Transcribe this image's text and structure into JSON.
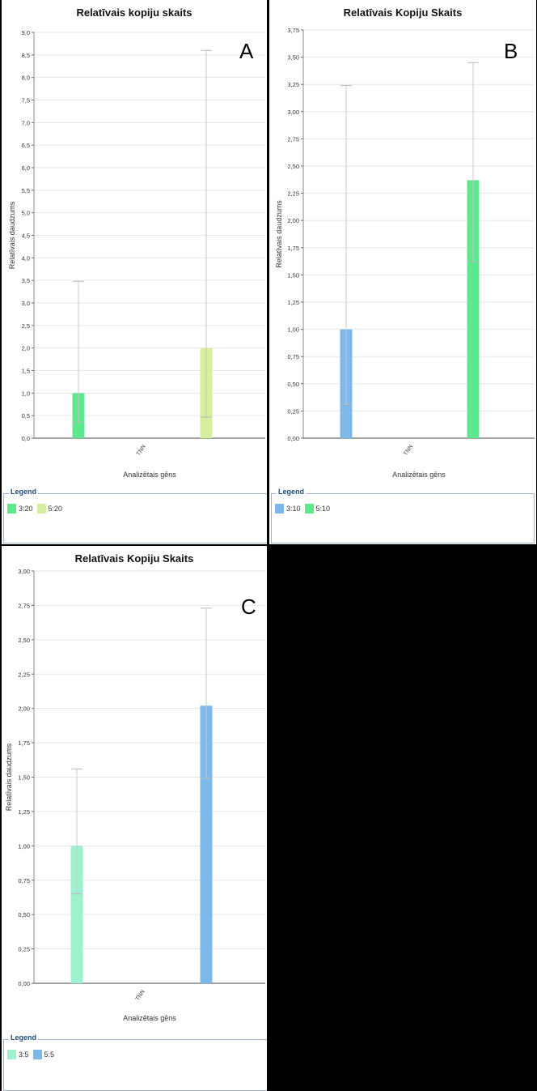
{
  "chart_data": [
    {
      "id": "A",
      "type": "bar",
      "title": "Relatīvais kopiju skaits",
      "panel_label": "A",
      "xlabel": "Analizētais gēns",
      "ylabel": "Relatīvais daudzums",
      "categories": [
        "TNN"
      ],
      "ylim": [
        0,
        9.0
      ],
      "ytick_step": 0.5,
      "yticks": [
        "0,0",
        "0,5",
        "1,0",
        "1,5",
        "2,0",
        "2,5",
        "3,0",
        "3,5",
        "4,0",
        "4,5",
        "5,0",
        "5,5",
        "6,0",
        "6,5",
        "7,0",
        "7,5",
        "8,0",
        "8,5",
        "9,0"
      ],
      "grid": true,
      "legend_title": "Legend",
      "legend_position": "bottom",
      "series": [
        {
          "name": "3:20",
          "values": [
            1.0
          ],
          "error_low": [
            0.35
          ],
          "error_high": [
            3.48
          ],
          "color": "#5ee88e"
        },
        {
          "name": "5:20",
          "values": [
            2.0
          ],
          "error_low": [
            0.47
          ],
          "error_high": [
            8.6
          ],
          "color": "#d6ef9e"
        }
      ]
    },
    {
      "id": "B",
      "type": "bar",
      "title": "Relatīvais Kopiju Skaits",
      "panel_label": "B",
      "xlabel": "Analizētais gēns",
      "ylabel": "Relatīvais daudzums",
      "categories": [
        "TNN"
      ],
      "ylim": [
        0,
        3.75
      ],
      "ytick_step": 0.25,
      "yticks": [
        "0,00",
        "0,25",
        "0,50",
        "0,75",
        "1,00",
        "1,25",
        "1,50",
        "1,75",
        "2,00",
        "2,25",
        "2,50",
        "2,75",
        "3,00",
        "3,25",
        "3,50",
        "3,75"
      ],
      "grid": true,
      "legend_title": "Legend",
      "legend_position": "bottom",
      "series": [
        {
          "name": "3:10",
          "values": [
            1.0
          ],
          "error_low": [
            0.31
          ],
          "error_high": [
            3.24
          ],
          "color": "#7db8e8"
        },
        {
          "name": "5:10",
          "values": [
            2.37
          ],
          "error_low": [
            1.62
          ],
          "error_high": [
            3.45
          ],
          "color": "#5ee88e"
        }
      ]
    },
    {
      "id": "C",
      "type": "bar",
      "title": "Relatīvais Kopiju Skaits",
      "panel_label": "C",
      "xlabel": "Analizētais gēns",
      "ylabel": "Relatīvais daudzums",
      "categories": [
        "TNN"
      ],
      "ylim": [
        0,
        3.0
      ],
      "ytick_step": 0.25,
      "yticks": [
        "0,00",
        "0,25",
        "0,50",
        "0,75",
        "1,00",
        "1,25",
        "1,50",
        "1,75",
        "2,00",
        "2,25",
        "2,50",
        "2,75",
        "3,00"
      ],
      "grid": true,
      "legend_title": "Legend",
      "legend_position": "bottom",
      "series": [
        {
          "name": "3:5",
          "values": [
            1.0
          ],
          "error_low": [
            0.65
          ],
          "error_high": [
            1.56
          ],
          "color": "#9ff0cf"
        },
        {
          "name": "5:5",
          "values": [
            2.02
          ],
          "error_low": [
            1.49
          ],
          "error_high": [
            2.73
          ],
          "color": "#7db8e8"
        }
      ]
    }
  ]
}
